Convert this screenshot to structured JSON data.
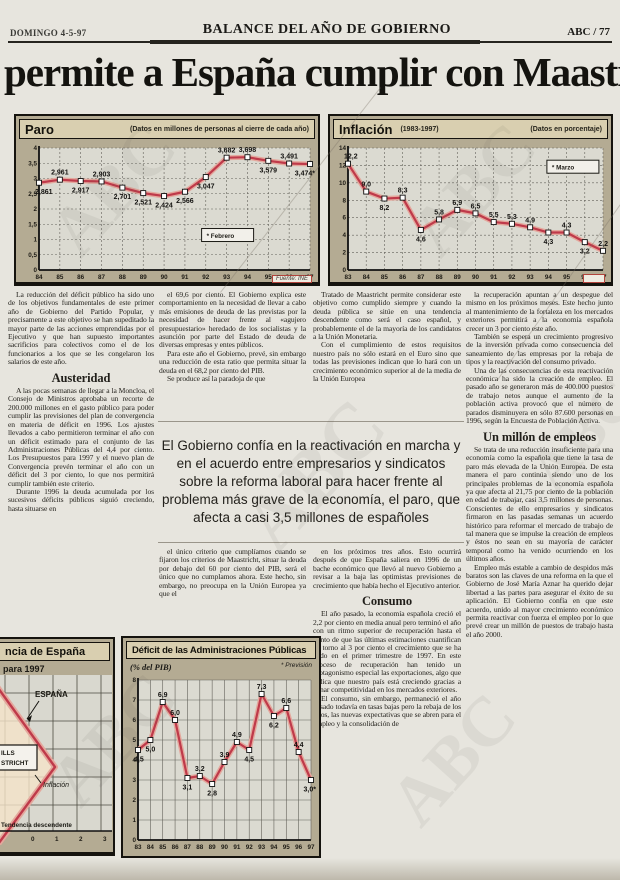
{
  "page": {
    "date": "DOMINGO 4-5-97",
    "section_title": "BALANCE DEL AÑO DE GOBIERNO",
    "page_number": "ABC / 77",
    "headline": "permite a España cumplir con Maastricht",
    "watermark": "ABC"
  },
  "pull_quote": "El Gobierno confía en la reactivación en marcha y en el acuerdo entre empresarios y sindicatos sobre la reforma laboral para hacer frente al problema más grave de la economía, el paro, que afecta a casi 3,5 millones de españoles",
  "columns": {
    "col1": {
      "p1": "La reducción del déficit público ha sido uno de los objetivos fundamentales de este primer año de Gobierno del Partido Popular, y precisamente a este objetivo se han supeditado la mayor parte de las acciones emprendidas por el Ejecutivo y que han supuesto importantes sacrificios para colectivos como el de los funcionarios a los que se les congelaron los salarios de este año.",
      "heading": "Austeridad",
      "p2": "A las pocas semanas de llegar a la Moncloa, el Consejo de Ministros aprobaba un recorte de 200.000 millones en el gasto público para poder cumplir las previsiones del plan de convergencia en materia de déficit en 1996. Los ajustes llevados a cabo permitieron terminar el año con un déficit estimado para el conjunto de las Administraciones Públicas del 4,4 por ciento. Los Presupuestos para 1997 y el nuevo plan de Convergencia prevén terminar el año con un déficit del 3 por ciento, lo que nos permitirá cumplir también este criterio.",
      "p3": "Durante 1996 la deuda acumulada por los sucesivos déficits públicos siguió creciendo, hasta situarse en"
    },
    "col2": {
      "p1": "el 69,6 por ciento. El Gobierno explica este comportamiento en la necesidad de llevar a cabo más emisiones de deuda de las previstas por la necesidad de hacer frente al «agujero presupuestario» heredado de los socialistas y la asunción por parte del Estado de deuda de diversas empresas y entes públicos.",
      "p2": "Para este año el Gobierno, prevé, sin embargo una reducción de esta ratio que permita situar la deuda en el 68,2 por ciento del PIB.",
      "p3": "Se produce así la paradoja de que",
      "p4": "el único criterio que cumplíamos cuando se fijaron los criterios de Maastricht, situar la deuda por debajo del 60 por ciento del PIB, será el único que no cumplamos ahora. Este hecho, sin embargo, no preocupa en la Unión Europea ya que el"
    },
    "col3": {
      "p1": "Tratado de Maastricht permite considerar este objetivo como cumplido siempre y cuando la deuda pública se sitúe en una tendencia descendente como será el caso español, y probablemente el de la mayoría de los candidatos a la Unión Monetaria.",
      "p2": "Con el cumplimiento de estos requisitos nuestro país no sólo estará en el Euro sino que todas las previsiones indican que lo hará con un crecimiento económico superior al de la media de la Unión Europea",
      "p3": "en los próximos tres años. Esto ocurrirá después de que España saliera en 1996 de un bache económico que llevó al nuevo Gobierno a revisar a la baja las optimistas previsiones de crecimiento que había hecho el Ejecutivo anterior.",
      "heading": "Consumo",
      "p4": "El año pasado, la economía española creció el 2,2 por ciento en media anual pero terminó el año con un ritmo superior de recuperación hasta el punto de que las últimas estimaciones cuantifican en torno al 3 por ciento el crecimiento que se ha dado en el primer trimestre de 1997. En este proceso de recuperación han tenido un protagonismo especial las exportaciones, algo que indica que nuestro país está creciendo gracias a ganar competitividad en los mercados exteriores.",
      "p5": "El consumo, sin embargo, permaneció el año pasado todavía en tasas bajas pero la rebaja de los tipos, las nuevas expectativas que se abren para el empleo y la consolidación de"
    },
    "col4": {
      "p1": "la recuperación apuntan a un despegue del mismo en los próximos meses. Este hecho junto al mantenimiento de la fortaleza en los mercados exteriores permitirá a la economía española crecer un 3 por ciento este año.",
      "p2": "También se espera un crecimiento progresivo de la inversión privada como consecuencia del saneamiento de las empresas por la rebaja de tipos y la reactivación del consumo privado.",
      "p3": "Una de las consecuencias de esta reactivación económica ha sido la creación de empleo. El pasado año se generaron más de 400.000 puestos de trabajo netos aunque el aumento de la población activa provocó que el número de parados disminuyera en sólo 87.600 personas en 1996, según la Encuesta de Población Activa.",
      "heading": "Un millón de empleos",
      "p4": "Se trata de una reducción insuficiente para una economía como la española que tiene la tasa de paro más elevada de la Unión Europea. De esta manera el paro continúa siendo uno de los principales problemas de la economía española ya que afecta al 21,75 por ciento de la población en edad de trabajar, casi 3,5 millones de personas. Conscientes de ello empresarios y sindicatos firmaron en las pasadas semanas un acuerdo histórico para reformar el mercado de trabajo de tal manera que se impulse la creación de empleos y éstos no sean en su mayoría de carácter temporal como ha venido ocurriendo en los últimos años.",
      "p5": "Empleo más estable a cambio de despidos más baratos son las claves de una reforma en la que el Gobierno de José María Aznar ha querido dejar libertad a las partes para asegurar el éxito de su aplicación. El Gobierno confía en que este acuerdo, unido al mayor crecimiento económico permita reactivar con fuerza el empleo por lo que prevé crear un millón de puestos de trabajo hasta el año 2000."
    }
  },
  "chart_data": [
    {
      "id": "paro",
      "type": "line",
      "title": "Paro",
      "subtitle": "(Datos en millones de personas al cierre de cada año)",
      "categories": [
        "84",
        "85",
        "86",
        "87",
        "88",
        "89",
        "90",
        "91",
        "92",
        "93",
        "94",
        "95",
        "96",
        "97"
      ],
      "values": [
        2.861,
        2.961,
        2.917,
        2.903,
        2.701,
        2.521,
        2.424,
        2.566,
        3.047,
        3.682,
        3.698,
        3.579,
        3.491,
        3.474
      ],
      "labels": [
        "2,861",
        "2,961",
        "2,917",
        "2,903",
        "2,701",
        "2,521",
        "2,424",
        "2,566",
        "3,047",
        "3,682",
        "3,698",
        "3,579",
        "3,491",
        "3,474*"
      ],
      "label_pos": [
        "below",
        "above",
        "below",
        "above",
        "below",
        "below",
        "below",
        "below",
        "below",
        "above",
        "above",
        "below",
        "above",
        "below"
      ],
      "ylim": [
        0,
        4
      ],
      "yticks": [
        "0",
        "0,5",
        "1",
        "1,5",
        "2",
        "2,5",
        "3",
        "3,5",
        "4"
      ],
      "legend": "* Febrero",
      "source": "Fuente: INE",
      "line_color": "#bf3a4a"
    },
    {
      "id": "inflacion",
      "type": "line",
      "title": "Inflación",
      "subtitle": "(1983-1997)",
      "note": "(Datos en porcentaje)",
      "categories": [
        "83",
        "84",
        "85",
        "86",
        "87",
        "88",
        "89",
        "90",
        "91",
        "92",
        "93",
        "94",
        "95",
        "96",
        "97"
      ],
      "values": [
        12.2,
        9.0,
        8.2,
        8.3,
        4.6,
        5.8,
        6.9,
        6.5,
        5.5,
        5.3,
        4.9,
        4.3,
        4.3,
        3.2,
        2.2
      ],
      "labels": [
        "12,2",
        "9,0",
        "8,2",
        "8,3",
        "4,6",
        "5,8",
        "6,9",
        "6,5",
        "5,5",
        "5,3",
        "4,9",
        "4,3",
        "4,3",
        "3,2",
        "2,2"
      ],
      "label_pos": [
        "above",
        "above",
        "below",
        "above",
        "below",
        "above",
        "above",
        "above",
        "above",
        "above",
        "above",
        "below",
        "above",
        "below",
        "above"
      ],
      "ylim": [
        0,
        14
      ],
      "yticks": [
        "0",
        "2",
        "4",
        "6",
        "8",
        "10",
        "12",
        "14"
      ],
      "legend": "* Marzo",
      "line_color": "#bf3a4a"
    },
    {
      "id": "deficit",
      "type": "line",
      "title": "Déficit de las Administraciones Públicas",
      "subtitle": "(% del PIB)",
      "note": "* Previsión",
      "categories": [
        "83",
        "84",
        "85",
        "86",
        "87",
        "88",
        "89",
        "90",
        "91",
        "92",
        "93",
        "94",
        "95",
        "96",
        "97"
      ],
      "values": [
        4.5,
        5.0,
        6.9,
        6.0,
        3.1,
        3.2,
        2.8,
        3.9,
        4.9,
        4.5,
        7.3,
        6.2,
        6.6,
        4.4,
        3.0
      ],
      "labels": [
        "4,5",
        "5,0",
        "6,9",
        "6,0",
        "3,1",
        "3,2",
        "2,8",
        "3,9",
        "4,9",
        "4,5",
        "7,3",
        "6,2",
        "6,6",
        "4,4",
        "3,0*"
      ],
      "label_pos": [
        "below",
        "below",
        "above",
        "above",
        "below",
        "above",
        "below",
        "above",
        "above",
        "below",
        "above",
        "below",
        "above",
        "above",
        "below"
      ],
      "ylim": [
        0,
        8
      ],
      "yticks": [
        "0",
        "1",
        "2",
        "3",
        "4",
        "5",
        "6",
        "7",
        "8"
      ],
      "line_color": "#bf3a4a"
    },
    {
      "id": "convergencia",
      "type": "line",
      "title": "ncia de España",
      "subtitle": "para 1997",
      "annotations": {
        "country": "ESPAÑA",
        "box_line1": "ILLS",
        "box_line2": "STRICHT",
        "series": "Inflación",
        "trend": "Tendencia descendente"
      },
      "xticks": [
        "0",
        "1",
        "2",
        "3"
      ]
    }
  ]
}
